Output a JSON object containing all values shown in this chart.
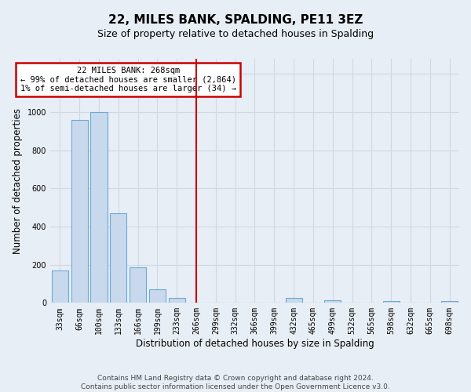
{
  "title": "22, MILES BANK, SPALDING, PE11 3EZ",
  "subtitle": "Size of property relative to detached houses in Spalding",
  "xlabel": "Distribution of detached houses by size in Spalding",
  "ylabel": "Number of detached properties",
  "footnote": "Contains HM Land Registry data © Crown copyright and database right 2024.\nContains public sector information licensed under the Open Government Licence v3.0.",
  "bins": [
    "33sqm",
    "66sqm",
    "100sqm",
    "133sqm",
    "166sqm",
    "199sqm",
    "233sqm",
    "266sqm",
    "299sqm",
    "332sqm",
    "366sqm",
    "399sqm",
    "432sqm",
    "465sqm",
    "499sqm",
    "532sqm",
    "565sqm",
    "598sqm",
    "632sqm",
    "665sqm",
    "698sqm"
  ],
  "values": [
    170,
    960,
    1000,
    470,
    185,
    70,
    25,
    0,
    0,
    0,
    0,
    0,
    25,
    0,
    15,
    0,
    0,
    10,
    0,
    0,
    10
  ],
  "bar_color": "#c8d9ee",
  "bar_edge_color": "#6aaad4",
  "red_line_x": 7,
  "annotation_line1": "22 MILES BANK: 268sqm",
  "annotation_line2": "← 99% of detached houses are smaller (2,864)",
  "annotation_line3": "1% of semi-detached houses are larger (34) →",
  "annotation_box_color": "#ffffff",
  "annotation_border_color": "#cc0000",
  "ylim": [
    0,
    1280
  ],
  "yticks": [
    0,
    200,
    400,
    600,
    800,
    1000,
    1200
  ],
  "background_color": "#e8eef5",
  "grid_color": "#d0d8e4",
  "title_fontsize": 11,
  "subtitle_fontsize": 9,
  "axis_label_fontsize": 8.5,
  "tick_fontsize": 7,
  "footnote_fontsize": 6.5
}
